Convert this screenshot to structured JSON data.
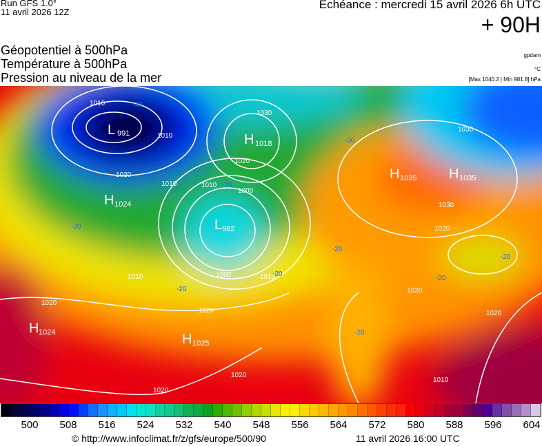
{
  "header": {
    "run": "Run GFS 1.0°",
    "run_date": "11 avril 2026 12Z",
    "echeance": "Echéance : mercredi 15 avril 2026 6h UTC",
    "lead_time": "+ 90H",
    "titles": [
      "Géopotentiel à 500hPa",
      "Température à 500hPa",
      "Pression au niveau de la mer"
    ],
    "units": [
      "gpdam",
      "°C",
      "[Max 1040.2 | Min 981.8] hPa"
    ]
  },
  "map": {
    "pressure_centers": [
      {
        "type": "L",
        "value": "991"
      },
      {
        "type": "H",
        "value": "1018"
      },
      {
        "type": "H",
        "value": "1024"
      },
      {
        "type": "L",
        "value": "982"
      },
      {
        "type": "H",
        "value": "1035"
      },
      {
        "type": "H",
        "value": "1035"
      },
      {
        "type": "H",
        "value": "1024"
      },
      {
        "type": "H",
        "value": "1025"
      }
    ],
    "isobar_labels": [
      "1010",
      "1010",
      "1020",
      "1010",
      "1020",
      "1030",
      "1010",
      "1000",
      "1000",
      "1010",
      "1010",
      "1020",
      "1020",
      "1020",
      "1020",
      "1030",
      "1020",
      "1030",
      "1020",
      "1010",
      "1020"
    ],
    "temperature_labels": [
      "-40",
      "-30",
      "-20",
      "-20",
      "-30",
      "-30",
      "-20",
      "-20",
      "-20",
      "-20",
      "-20"
    ]
  },
  "colorbar": {
    "unit": "gpdam",
    "labels": [
      "500",
      "508",
      "516",
      "524",
      "532",
      "540",
      "548",
      "556",
      "564",
      "572",
      "580",
      "588",
      "596",
      "604"
    ],
    "colors": [
      "#000010",
      "#050530",
      "#000050",
      "#000068",
      "#00008a",
      "#0000b0",
      "#0000e0",
      "#0010ff",
      "#0040ff",
      "#1070ff",
      "#1890ff",
      "#10b0ff",
      "#00c8ff",
      "#00e0f0",
      "#00e8d0",
      "#10e0c0",
      "#10d0a0",
      "#10c890",
      "#10c070",
      "#10b050",
      "#10a840",
      "#10a020",
      "#30aa00",
      "#50b800",
      "#70c000",
      "#90d000",
      "#b0d800",
      "#c8e000",
      "#e8e800",
      "#f8f000",
      "#fff000",
      "#ffd800",
      "#ffc800",
      "#ffb800",
      "#ffa800",
      "#ff9800",
      "#ff8800",
      "#ff7000",
      "#ff5800",
      "#ff4000",
      "#ff3000",
      "#ff2010",
      "#f80000",
      "#e80010",
      "#d00020",
      "#c00028",
      "#a80030",
      "#a00040",
      "#800050",
      "#600070",
      "#500090",
      "#6830a0",
      "#8050a8",
      "#9870b8",
      "#b090c8",
      "#d8c8e8"
    ]
  },
  "footer": {
    "url": "© http://www.infoclimat.fr/z/gfs/europe/500/90",
    "timestamp": "11 avril 2026 16:00 UTC"
  }
}
